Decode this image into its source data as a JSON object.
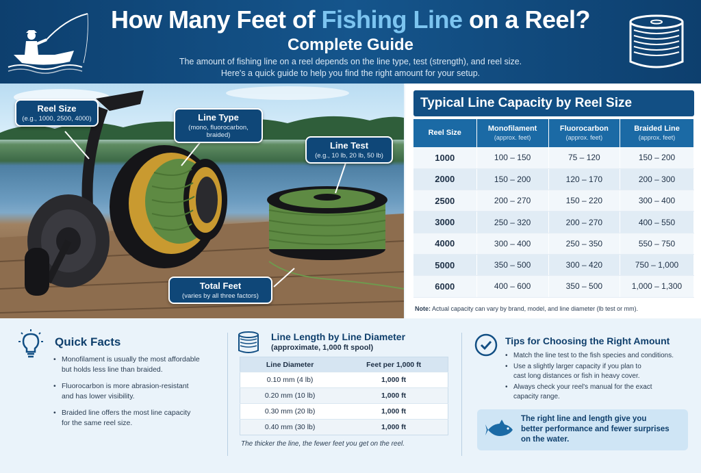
{
  "header": {
    "title_part1": "How Many Feet of ",
    "title_highlight": "Fishing Line",
    "title_part2": " on a Reel?",
    "subtitle": "Complete Guide",
    "intro_line1": "The amount of fishing line on a reel depends on the line type, test (strength), and reel size.",
    "intro_line2": "Here's a quick guide to help you find the right amount for your setup."
  },
  "photo": {
    "callouts": [
      {
        "title": "Reel Size",
        "sub": "(e.g., 1000, 2500, 4000)"
      },
      {
        "title": "Line Type",
        "sub": "(mono, fluorocarbon, braided)"
      },
      {
        "title": "Line Test",
        "sub": "(e.g., 10 lb, 20 lb, 50 lb)"
      },
      {
        "title": "Total Feet",
        "sub": "(varies by all three factors)"
      }
    ]
  },
  "capacity": {
    "title": "Typical Line Capacity by Reel Size",
    "headers": [
      {
        "label": "Reel Size",
        "sub": ""
      },
      {
        "label": "Monofilament",
        "sub": "(approx. feet)"
      },
      {
        "label": "Fluorocarbon",
        "sub": "(approx. feet)"
      },
      {
        "label": "Braided Line",
        "sub": "(approx. feet)"
      }
    ],
    "rows": [
      [
        "1000",
        "100 – 150",
        "75 – 120",
        "150 – 200"
      ],
      [
        "2000",
        "150 – 200",
        "120 – 170",
        "200 – 300"
      ],
      [
        "2500",
        "200 – 270",
        "150 – 220",
        "300 – 400"
      ],
      [
        "3000",
        "250 – 320",
        "200 – 270",
        "400 – 550"
      ],
      [
        "4000",
        "300 – 400",
        "250 – 350",
        "550 – 750"
      ],
      [
        "5000",
        "350 – 500",
        "300 – 420",
        "750 – 1,000"
      ],
      [
        "6000",
        "400 – 600",
        "350 – 500",
        "1,000 – 1,300"
      ]
    ],
    "note_label": "Note:",
    "note_text": " Actual capacity can vary by brand, model, and line diameter (lb test or mm)."
  },
  "quick_facts": {
    "title": "Quick Facts",
    "items": [
      {
        "bold": "",
        "line1": "Monofilament is usually the most affordable",
        "line2": "but holds less line than braided."
      },
      {
        "bold": "",
        "line1": "Fluorocarbon is more abrasion-resistant",
        "line2": "and has lower visibility."
      },
      {
        "bold": "",
        "line1": "Braided line offers the most line capacity",
        "line2": "for the same reel size."
      }
    ]
  },
  "diameter": {
    "title": "Line Length by Line Diameter",
    "subtitle": "(approximate, 1,000 ft spool)",
    "headers": [
      "Line Diameter",
      "Feet per 1,000 ft"
    ],
    "rows": [
      [
        "0.10 mm (4 lb)",
        "1,000 ft"
      ],
      [
        "0.20 mm (10 lb)",
        "1,000 ft"
      ],
      [
        "0.30 mm (20 lb)",
        "1,000 ft"
      ],
      [
        "0.40 mm (30 lb)",
        "1,000 ft"
      ]
    ],
    "footnote": "The thicker the line, the fewer feet you get on the reel."
  },
  "tips": {
    "title": "Tips for Choosing the Right Amount",
    "items": [
      {
        "line1": "Match the line test to the fish species and conditions.",
        "line2": ""
      },
      {
        "line1": "Use a slightly larger capacity if you plan to",
        "line2": "cast long distances or fish in heavy cover."
      },
      {
        "line1": "Always check your reel's manual for the exact",
        "line2": "capacity range."
      }
    ],
    "message_line1": "The right line and length give you",
    "message_line2": "better performance and fewer surprises",
    "message_line3": "on the water."
  }
}
